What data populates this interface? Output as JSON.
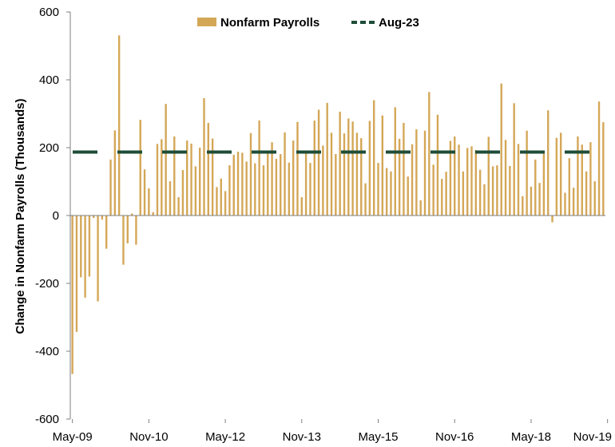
{
  "chart_data": {
    "type": "bar",
    "ylabel": "Change in Nonfarm Payrolls (Thousands)",
    "xlabel": "",
    "ylim": [
      -600,
      600
    ],
    "yticks": [
      -600,
      -400,
      -200,
      0,
      200,
      400,
      600
    ],
    "x_tick_labels": [
      "May-09",
      "Nov-10",
      "May-12",
      "Nov-13",
      "May-15",
      "Nov-16",
      "May-18",
      "Nov-19"
    ],
    "start_label": "May-09",
    "series": [
      {
        "name": "Nonfarm Payrolls",
        "color": "#D4A757",
        "type": "bar",
        "values": [
          -467,
          -343,
          -182,
          -242,
          -180,
          -7,
          -253,
          -12,
          -98,
          165,
          251,
          531,
          -145,
          -82,
          6,
          -86,
          282,
          136,
          80,
          10,
          211,
          225,
          329,
          101,
          233,
          54,
          134,
          221,
          212,
          145,
          200,
          346,
          273,
          227,
          84,
          109,
          72,
          148,
          179,
          188,
          185,
          159,
          243,
          154,
          280,
          148,
          191,
          216,
          167,
          181,
          245,
          156,
          221,
          276,
          54,
          186,
          155,
          280,
          312,
          206,
          332,
          244,
          181,
          306,
          242,
          286,
          277,
          244,
          228,
          95,
          279,
          340,
          155,
          295,
          140,
          130,
          319,
          226,
          273,
          115,
          210,
          254,
          45,
          250,
          364,
          150,
          297,
          108,
          129,
          220,
          233,
          209,
          130,
          199,
          204,
          193,
          135,
          92,
          232,
          145,
          148,
          389,
          223,
          146,
          331,
          211,
          57,
          250,
          85,
          165,
          96,
          182,
          310,
          -20,
          229,
          244,
          67,
          169,
          82,
          233,
          209,
          130,
          216,
          101,
          336,
          275
        ]
      },
      {
        "name": "Aug-23",
        "color": "#1E4D38",
        "type": "dashed-line",
        "value": 187
      }
    ],
    "legend_position": "top-center",
    "grid": false
  }
}
